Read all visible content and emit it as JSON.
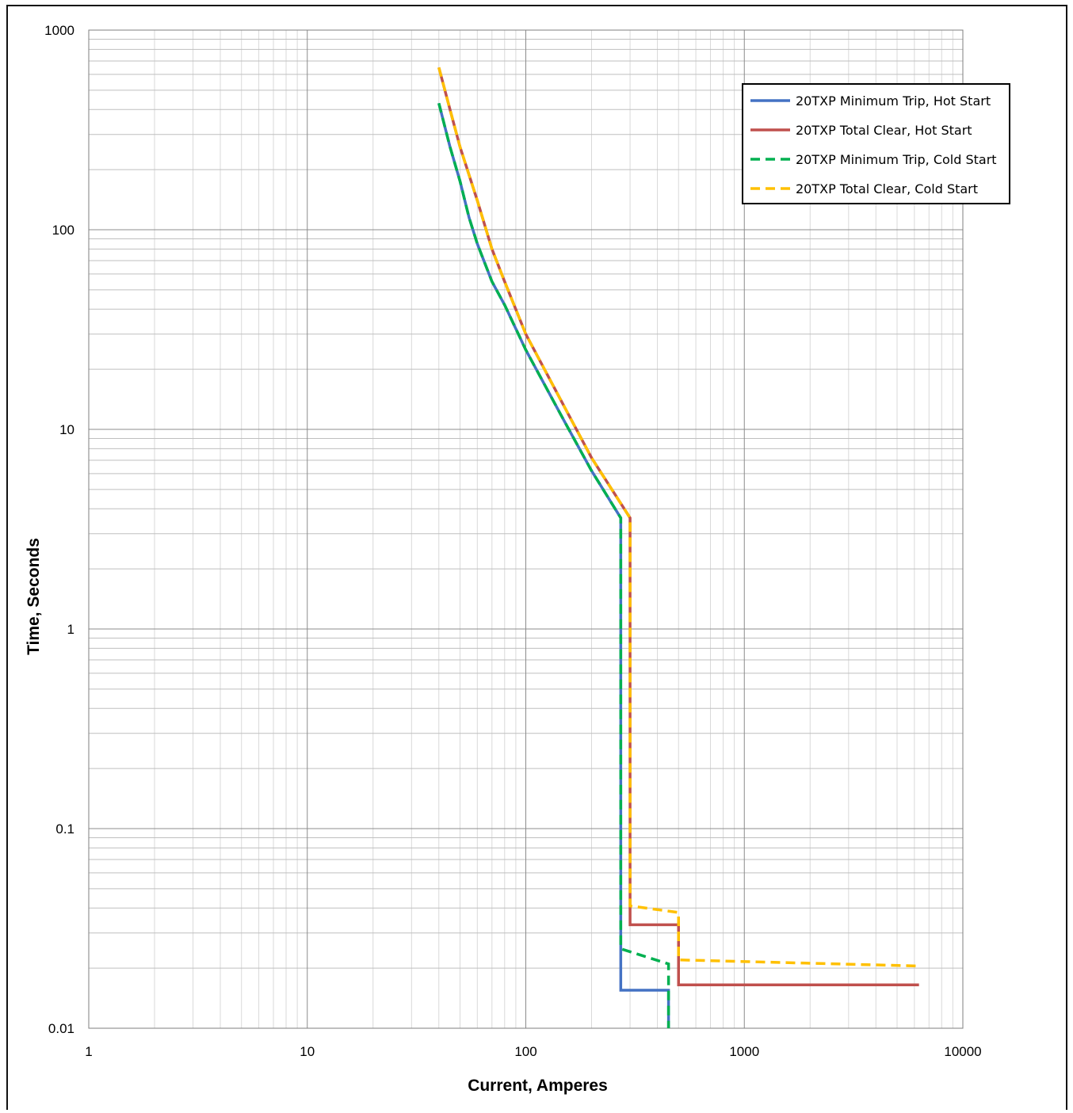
{
  "chart_data": {
    "type": "line",
    "xlabel": "Current, Amperes",
    "ylabel": "Time, Seconds",
    "xscale": "log",
    "yscale": "log",
    "xlim": [
      1,
      10000
    ],
    "ylim": [
      0.01,
      1000
    ],
    "x_tick_labels": [
      "1",
      "10",
      "100",
      "1000",
      "10000"
    ],
    "y_tick_labels": [
      "0.01",
      "0.1",
      "1",
      "10",
      "100",
      "1000"
    ],
    "grid": true,
    "legend_position": "top-right",
    "series": [
      {
        "name": "20TXP Minimum Trip, Hot Start",
        "color": "#4472C4",
        "dash": "solid",
        "points": [
          [
            40,
            430
          ],
          [
            45,
            260
          ],
          [
            50,
            175
          ],
          [
            55,
            115
          ],
          [
            60,
            85
          ],
          [
            70,
            55
          ],
          [
            80,
            42
          ],
          [
            100,
            25
          ],
          [
            150,
            11
          ],
          [
            200,
            6.2
          ],
          [
            272,
            3.6
          ],
          [
            272,
            0.0155
          ],
          [
            450,
            0.0155
          ],
          [
            450,
            0.01
          ]
        ]
      },
      {
        "name": "20TXP Total Clear, Hot Start",
        "color": "#C0504D",
        "dash": "solid",
        "points": [
          [
            40,
            650
          ],
          [
            45,
            400
          ],
          [
            50,
            260
          ],
          [
            60,
            140
          ],
          [
            70,
            80
          ],
          [
            80,
            55
          ],
          [
            100,
            30
          ],
          [
            150,
            13
          ],
          [
            200,
            7.2
          ],
          [
            300,
            3.6
          ],
          [
            300,
            0.033
          ],
          [
            500,
            0.033
          ],
          [
            500,
            0.0165
          ],
          [
            6300,
            0.0165
          ]
        ]
      },
      {
        "name": "20TXP Minimum Trip, Cold Start",
        "color": "#00B050",
        "dash": "dashed",
        "points": [
          [
            40,
            430
          ],
          [
            45,
            260
          ],
          [
            50,
            175
          ],
          [
            55,
            115
          ],
          [
            60,
            85
          ],
          [
            70,
            55
          ],
          [
            80,
            42
          ],
          [
            100,
            25
          ],
          [
            150,
            11
          ],
          [
            200,
            6.2
          ],
          [
            272,
            3.6
          ],
          [
            272,
            0.025
          ],
          [
            450,
            0.021
          ],
          [
            450,
            0.01
          ]
        ]
      },
      {
        "name": "20TXP Total Clear, Cold Start",
        "color": "#FFC000",
        "dash": "dashed",
        "points": [
          [
            40,
            650
          ],
          [
            45,
            400
          ],
          [
            50,
            260
          ],
          [
            60,
            140
          ],
          [
            70,
            80
          ],
          [
            80,
            55
          ],
          [
            100,
            30
          ],
          [
            150,
            13
          ],
          [
            200,
            7.2
          ],
          [
            300,
            3.6
          ],
          [
            300,
            0.041
          ],
          [
            500,
            0.038
          ],
          [
            500,
            0.022
          ],
          [
            6300,
            0.0205
          ]
        ]
      }
    ]
  }
}
